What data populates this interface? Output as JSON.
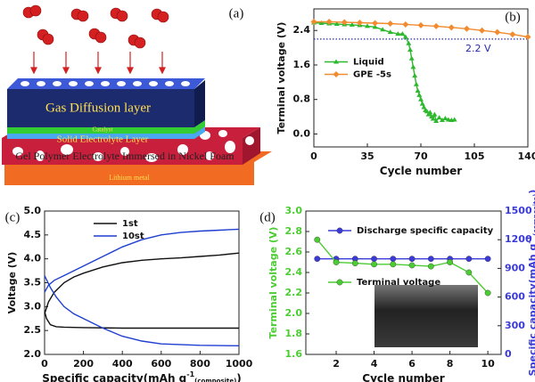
{
  "diagram": {
    "label": "(a)",
    "layers": [
      "Gas Diffusion layer",
      "Catalyst",
      "Solid Electrolyte Layer",
      "Gel Polymer Electrolyte Immersed in Nickel Foam",
      "Lithium metal"
    ]
  },
  "chart_data": [
    {
      "type": "line",
      "label": "(b)",
      "xlabel": [
        "Cycle number"
      ],
      "ylabel": "Terminal voltage (V)",
      "xlim": [
        0,
        140
      ],
      "xticks": [
        0,
        35,
        70,
        105,
        140
      ],
      "ylim": [
        -0.3,
        2.9
      ],
      "yticks": [
        {
          "value": 0,
          "label": "0.0"
        },
        0.8,
        1.6,
        2.4
      ],
      "legend": "center left",
      "hline": {
        "value": 2.2,
        "label": "2.2 V",
        "color": "#2a2aa8"
      },
      "series": [
        {
          "name": "Liquid",
          "color": "#2eb82e",
          "marker": "triangle",
          "x": [
            0,
            5,
            10,
            15,
            20,
            25,
            30,
            35,
            40,
            45,
            50,
            55,
            58,
            60,
            62,
            63,
            64,
            65,
            66,
            67,
            68,
            69,
            70,
            71,
            72,
            73,
            74,
            75,
            76,
            77,
            78,
            79,
            80,
            82,
            84,
            86,
            88,
            90,
            92
          ],
          "values": [
            2.58,
            2.57,
            2.56,
            2.55,
            2.54,
            2.53,
            2.52,
            2.5,
            2.48,
            2.42,
            2.36,
            2.32,
            2.32,
            2.25,
            2.1,
            1.95,
            1.75,
            1.55,
            1.35,
            1.15,
            1.0,
            0.9,
            0.8,
            0.7,
            0.62,
            0.55,
            0.52,
            0.45,
            0.5,
            0.4,
            0.35,
            0.45,
            0.3,
            0.38,
            0.32,
            0.36,
            0.33,
            0.32,
            0.33
          ]
        },
        {
          "name": "GPE -5s",
          "color": "#f28a2e",
          "marker": "diamond",
          "x": [
            0,
            10,
            20,
            30,
            40,
            50,
            60,
            70,
            80,
            90,
            100,
            110,
            120,
            130,
            140
          ],
          "values": [
            2.6,
            2.6,
            2.59,
            2.58,
            2.57,
            2.56,
            2.54,
            2.52,
            2.5,
            2.47,
            2.44,
            2.4,
            2.36,
            2.31,
            2.25
          ]
        }
      ]
    },
    {
      "type": "line",
      "label": "(c)",
      "xlabel": [
        "Specific capacity(mAh g",
        "-1",
        "(composite)",
        ")"
      ],
      "ylabel": "Voltage (V)",
      "xlim": [
        0,
        1000
      ],
      "xticks": [
        0,
        200,
        400,
        600,
        800,
        1000
      ],
      "ylim": [
        2,
        5
      ],
      "yticks": [
        {
          "value": 2,
          "label": "2.0"
        },
        2.5,
        {
          "value": 3,
          "label": "3.0"
        },
        3.5,
        {
          "value": 4,
          "label": "4.0"
        },
        4.5,
        {
          "value": 5,
          "label": "5.0"
        }
      ],
      "legend": "upper center",
      "series": [
        {
          "name": "1st",
          "color": "#111111",
          "marker": "none",
          "x": [
            0,
            20,
            50,
            100,
            150,
            200,
            300,
            400,
            500,
            600,
            700,
            800,
            900,
            1000,
            null,
            0,
            10,
            30,
            60,
            100,
            200,
            400,
            600,
            800,
            1000
          ],
          "values": [
            2.85,
            3.1,
            3.3,
            3.5,
            3.62,
            3.7,
            3.83,
            3.92,
            3.97,
            4.0,
            4.02,
            4.05,
            4.08,
            4.12,
            null,
            2.9,
            2.75,
            2.62,
            2.58,
            2.57,
            2.56,
            2.55,
            2.55,
            2.55,
            2.55
          ]
        },
        {
          "name": "10st",
          "color": "#1f3fd0",
          "marker": "none",
          "x": [
            0,
            20,
            50,
            100,
            150,
            200,
            300,
            400,
            500,
            600,
            700,
            800,
            900,
            1000,
            null,
            0,
            30,
            60,
            100,
            150,
            200,
            300,
            400,
            500,
            600,
            800,
            1000
          ],
          "values": [
            3.3,
            3.45,
            3.55,
            3.65,
            3.75,
            3.85,
            4.05,
            4.25,
            4.4,
            4.5,
            4.55,
            4.58,
            4.6,
            4.62,
            null,
            3.65,
            3.4,
            3.2,
            3.0,
            2.85,
            2.75,
            2.55,
            2.38,
            2.28,
            2.22,
            2.19,
            2.18
          ]
        }
      ]
    },
    {
      "type": "line",
      "label": "(d)",
      "xlabel": [
        "Cycle number"
      ],
      "ylabel": "Terminal voltage (V)",
      "y2label": [
        "Specific capacity(mAh g",
        "-1",
        "(composite)",
        ")"
      ],
      "xlim": [
        0.4,
        10.7
      ],
      "xticks": [
        2,
        4,
        6,
        8,
        10
      ],
      "ylim": [
        1.6,
        3.0
      ],
      "yticks": [
        1.6,
        1.8,
        {
          "value": 2,
          "label": "2.0"
        },
        2.2,
        2.4,
        2.6,
        2.8,
        {
          "value": 3,
          "label": "3.0"
        }
      ],
      "y2lim": [
        0,
        1500
      ],
      "y2ticks": [
        0,
        300,
        600,
        900,
        1200,
        1500
      ],
      "legend": "upper right",
      "series": [
        {
          "name": "Discharge specific capacity",
          "color": "#3a3ad8",
          "marker": "circle",
          "axis": "y2",
          "x": [
            1,
            2,
            3,
            4,
            5,
            6,
            7,
            8,
            9,
            10
          ],
          "values": [
            1000,
            1000,
            1000,
            1000,
            1000,
            1000,
            1000,
            1000,
            1000,
            1000
          ]
        },
        {
          "name": "Terminal voltage",
          "color": "#4ccc33",
          "marker": "circle",
          "x": [
            1,
            2,
            3,
            4,
            5,
            6,
            7,
            8,
            9,
            10
          ],
          "values": [
            2.72,
            2.5,
            2.49,
            2.48,
            2.48,
            2.47,
            2.46,
            2.5,
            2.4,
            2.2
          ]
        }
      ]
    }
  ]
}
